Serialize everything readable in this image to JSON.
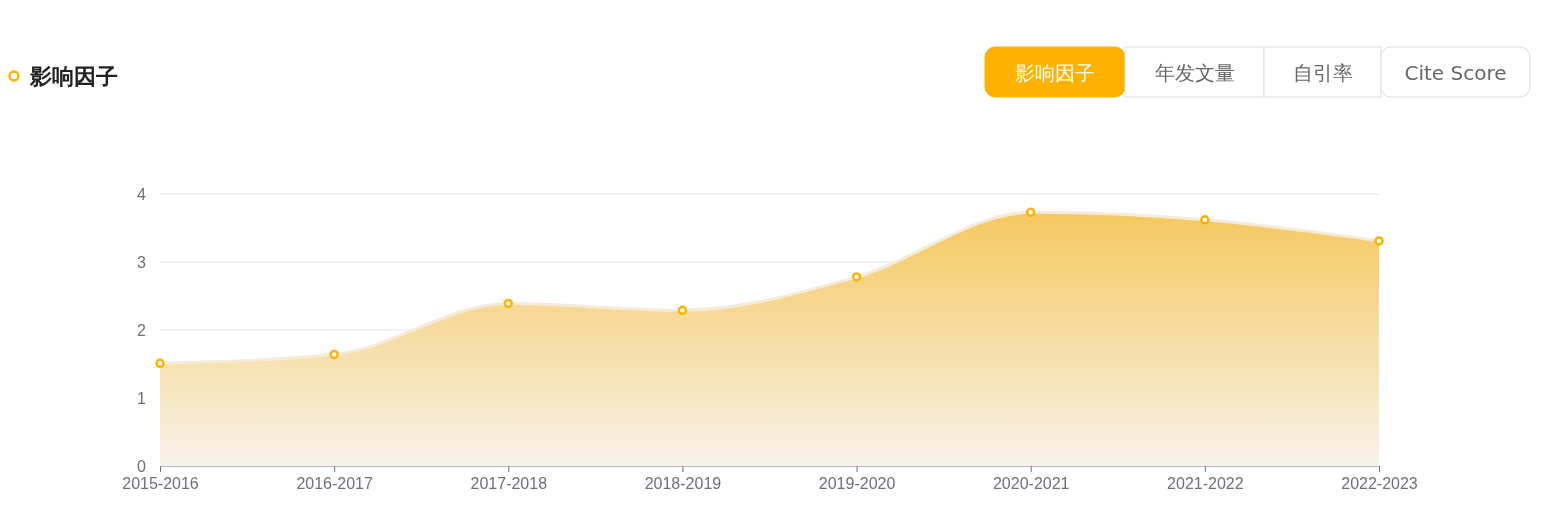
{
  "chart_data": {
    "type": "area",
    "title": "影响因子",
    "categories": [
      "2015-2016",
      "2016-2017",
      "2017-2018",
      "2018-2019",
      "2019-2020",
      "2020-2021",
      "2021-2022",
      "2022-2023"
    ],
    "series": [
      {
        "color": "#ffb300",
        "values": [
          1.51,
          1.64,
          2.39,
          2.29,
          2.78,
          3.73,
          3.62,
          3.31
        ]
      }
    ],
    "ylim": [
      0,
      4
    ],
    "yticks": [
      0,
      1,
      2,
      3,
      4
    ],
    "grid": "y",
    "marker": "circle",
    "annotations": [
      "影响因子",
      "年发文量",
      "自引率",
      "Cite Score"
    ]
  }
}
